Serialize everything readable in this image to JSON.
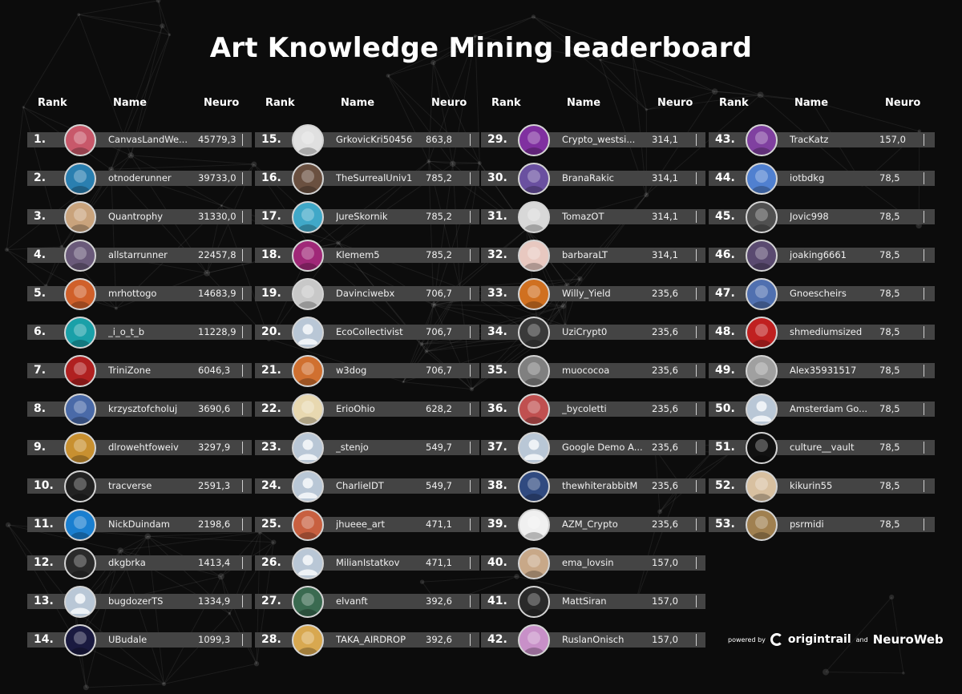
{
  "title": "Art Knowledge Mining leaderboard",
  "headers": {
    "rank": "Rank",
    "name": "Name",
    "neuro": "Neuro"
  },
  "colors": {
    "background": "#0c0c0c",
    "row": "#444444",
    "text": "#ffffff"
  },
  "entries": [
    {
      "rank": "1.",
      "name": "CanvasLandWe...",
      "neuro": "45779,3",
      "avatar": "red-hat-figure-icon",
      "color": "#c8586a"
    },
    {
      "rank": "2.",
      "name": "otnoderunner",
      "neuro": "39733,0",
      "avatar": "ring-logo-icon",
      "color": "#2a7fb0"
    },
    {
      "rank": "3.",
      "name": "Quantrophy",
      "neuro": "31330,0",
      "avatar": "sunset-landscape-icon",
      "color": "#c9a37c"
    },
    {
      "rank": "4.",
      "name": "allstarrunner",
      "neuro": "22457,8",
      "avatar": "green-swirl-icon",
      "color": "#6a5a7a"
    },
    {
      "rank": "5.",
      "name": "mrhottogo",
      "neuro": "14683,9",
      "avatar": "pirate-character-icon",
      "color": "#d0602a"
    },
    {
      "rank": "6.",
      "name": "_i_o_t_b",
      "neuro": "11228,9",
      "avatar": "cyan-grid-icon",
      "color": "#1aa0a8"
    },
    {
      "rank": "7.",
      "name": "TriniZone",
      "neuro": "6046,3",
      "avatar": "red-glove-icon",
      "color": "#b02020"
    },
    {
      "rank": "8.",
      "name": "krzysztofcholuj",
      "neuro": "3690,6",
      "avatar": "blue-creature-icon",
      "color": "#4a6aa8"
    },
    {
      "rank": "9.",
      "name": "dlrowehtfoweiv",
      "neuro": "3297,9",
      "avatar": "bee-icon",
      "color": "#c89030"
    },
    {
      "rank": "10.",
      "name": "tracverse",
      "neuro": "2591,3",
      "avatar": "tracverse-logo-icon",
      "color": "#222222"
    },
    {
      "rank": "11.",
      "name": "NickDuindam",
      "neuro": "2198,6",
      "avatar": "letter-n-icon",
      "color": "#1a7fd0"
    },
    {
      "rank": "12.",
      "name": "dkgbrka",
      "neuro": "1413,4",
      "avatar": "dark-character-icon",
      "color": "#2a2a2a"
    },
    {
      "rank": "13.",
      "name": "bugdozerTS",
      "neuro": "1334,9",
      "avatar": "default-user-icon",
      "color": "#b9c7d6"
    },
    {
      "rank": "14.",
      "name": "UBudale",
      "neuro": "1099,3",
      "avatar": "galaxy-icon",
      "color": "#1a1a40"
    },
    {
      "rank": "15.",
      "name": "GrkovicKri50456",
      "neuro": "863,8",
      "avatar": "skull-art-icon",
      "color": "#e0e0e0"
    },
    {
      "rank": "16.",
      "name": "TheSurrealUniv1",
      "neuro": "785,2",
      "avatar": "surreal-portrait-icon",
      "color": "#6a5040"
    },
    {
      "rank": "17.",
      "name": "JureSkornik",
      "neuro": "785,2",
      "avatar": "man-glasses-icon",
      "color": "#40a8c8"
    },
    {
      "rank": "18.",
      "name": "Klemem5",
      "neuro": "785,2",
      "avatar": "colorful-mask-icon",
      "color": "#a02878"
    },
    {
      "rank": "19.",
      "name": "Davinciwebx",
      "neuro": "706,7",
      "avatar": "sketch-icon",
      "color": "#c8c8c8"
    },
    {
      "rank": "20.",
      "name": "EcoCollectivist",
      "neuro": "706,7",
      "avatar": "default-user-icon",
      "color": "#b9c7d6"
    },
    {
      "rank": "21.",
      "name": "w3dog",
      "neuro": "706,7",
      "avatar": "dog-icon",
      "color": "#d07030"
    },
    {
      "rank": "22.",
      "name": "ErioOhio",
      "neuro": "628,2",
      "avatar": "building-icon",
      "color": "#e8d8b0"
    },
    {
      "rank": "23.",
      "name": "_stenjo",
      "neuro": "549,7",
      "avatar": "default-user-icon",
      "color": "#b9c7d6"
    },
    {
      "rank": "24.",
      "name": "CharlieIDT",
      "neuro": "549,7",
      "avatar": "default-user-icon",
      "color": "#b9c7d6"
    },
    {
      "rank": "25.",
      "name": "jhueee_art",
      "neuro": "471,1",
      "avatar": "woman-portrait-icon",
      "color": "#c86040"
    },
    {
      "rank": "26.",
      "name": "MilianIstatkov",
      "neuro": "471,1",
      "avatar": "default-user-icon",
      "color": "#b9c7d6"
    },
    {
      "rank": "27.",
      "name": "elvanft",
      "neuro": "392,6",
      "avatar": "green-head-icon",
      "color": "#3a6a50"
    },
    {
      "rank": "28.",
      "name": "TAKA_AIRDROP",
      "neuro": "392,6",
      "avatar": "doge-icon",
      "color": "#d8a850"
    },
    {
      "rank": "29.",
      "name": "Crypto_westsi...",
      "neuro": "314,1",
      "avatar": "neon-face-icon",
      "color": "#8030a0"
    },
    {
      "rank": "30.",
      "name": "BranaRakic",
      "neuro": "314,1",
      "avatar": "portrait-purple-icon",
      "color": "#6a50a0"
    },
    {
      "rank": "31.",
      "name": "TomazOT",
      "neuro": "314,1",
      "avatar": "man-portrait-icon",
      "color": "#d8d8d8"
    },
    {
      "rank": "32.",
      "name": "barbaraLT",
      "neuro": "314,1",
      "avatar": "pink-room-icon",
      "color": "#e8c8c0"
    },
    {
      "rank": "33.",
      "name": " Willy_Yield",
      "neuro": "235,6",
      "avatar": "hat-figure-icon",
      "color": "#d07020"
    },
    {
      "rank": "34.",
      "name": "UziCrypt0",
      "neuro": "235,6",
      "avatar": "mask-robot-icon",
      "color": "#3a3a3a"
    },
    {
      "rank": "35.",
      "name": " muococoa",
      "neuro": "235,6",
      "avatar": "bw-face-icon",
      "color": "#808080"
    },
    {
      "rank": "36.",
      "name": "_bycoletti",
      "neuro": "235,6",
      "avatar": "floral-art-icon",
      "color": "#c05050"
    },
    {
      "rank": "37.",
      "name": "Google Demo A...",
      "neuro": "235,6",
      "avatar": "default-user-icon",
      "color": "#b9c7d6"
    },
    {
      "rank": "38.",
      "name": "thewhiterabbitM",
      "neuro": "235,6",
      "avatar": "blue-figure-icon",
      "color": "#304a80"
    },
    {
      "rank": "39.",
      "name": "AZM_Crypto",
      "neuro": "235,6",
      "avatar": "azm-logo-icon",
      "color": "#f0f0f0"
    },
    {
      "rank": "40.",
      "name": "ema_lovsin",
      "neuro": "157,0",
      "avatar": "woman-photo-icon",
      "color": "#c8a888"
    },
    {
      "rank": "41.",
      "name": "MattSiran",
      "neuro": "157,0",
      "avatar": "dark-photo-icon",
      "color": "#2a2a2a"
    },
    {
      "rank": "42.",
      "name": "RuslanOnisch",
      "neuro": "157,0",
      "avatar": "pastel-art-icon",
      "color": "#c890c8"
    },
    {
      "rank": "43.",
      "name": "TracKatz",
      "neuro": "157,0",
      "avatar": "cat-icon",
      "color": "#8040a0"
    },
    {
      "rank": "44.",
      "name": "iotbdkg",
      "neuro": "78,5",
      "avatar": "pixel-art-icon",
      "color": "#5080d0"
    },
    {
      "rank": "45.",
      "name": "Jovic998",
      "neuro": "78,5",
      "avatar": "mountain-photo-icon",
      "color": "#505050"
    },
    {
      "rank": "46.",
      "name": "joaking6661",
      "neuro": "78,5",
      "avatar": "purple-figure-icon",
      "color": "#5a4a70"
    },
    {
      "rank": "47.",
      "name": "Gnoescheirs",
      "neuro": "78,5",
      "avatar": "character-icon",
      "color": "#5070b0"
    },
    {
      "rank": "48.",
      "name": "shmediumsized",
      "neuro": "78,5",
      "avatar": "red-symbol-icon",
      "color": "#c02020"
    },
    {
      "rank": "49.",
      "name": "Alex35931517",
      "neuro": "78,5",
      "avatar": "bw-portrait-icon",
      "color": "#a0a0a0"
    },
    {
      "rank": "50.",
      "name": "Amsterdam Go...",
      "neuro": "78,5",
      "avatar": "default-user-icon",
      "color": "#b9c7d6"
    },
    {
      "rank": "51.",
      "name": "culture__vault",
      "neuro": "78,5",
      "avatar": "vault-logo-icon",
      "color": "#111111"
    },
    {
      "rank": "52.",
      "name": "kikurin55",
      "neuro": "78,5",
      "avatar": "puppy-icon",
      "color": "#d8c0a0"
    },
    {
      "rank": "53.",
      "name": "psrmidi",
      "neuro": "78,5",
      "avatar": "kangaroo-icon",
      "color": "#a08050"
    }
  ],
  "footer": {
    "powered": "powered by",
    "brand1": "origintrail",
    "and": "and",
    "brand2": "NeuroWeb"
  }
}
